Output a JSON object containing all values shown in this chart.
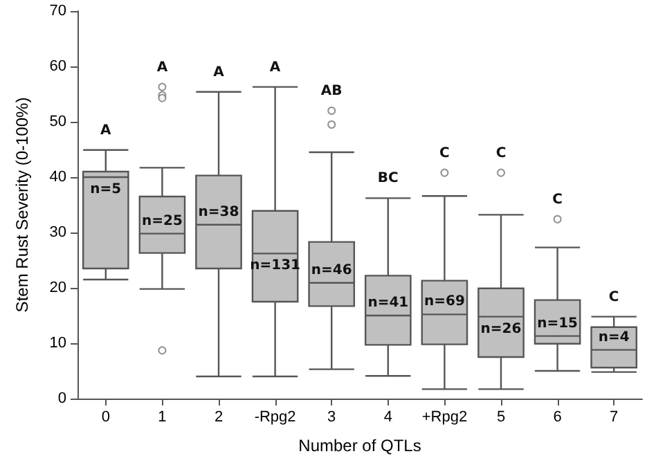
{
  "chart_data": {
    "type": "box",
    "xlabel": "Number of QTLs",
    "ylabel": "Stem Rust Severity (0-100%)",
    "categories": [
      "0",
      "1",
      "2",
      "-Rpg2",
      "3",
      "4",
      "+Rpg2",
      "5",
      "6",
      "7"
    ],
    "color": "#c0c0c0",
    "boxes": [
      {
        "low": 21.5,
        "q1": 23.5,
        "median": 40,
        "q3": 41,
        "high": 44.9
      },
      {
        "low": 19.8,
        "q1": 26.3,
        "median": 29.8,
        "q3": 36.5,
        "high": 41.7,
        "outliers": [
          56.3,
          54.8,
          54.3,
          8.7
        ]
      },
      {
        "low": 4,
        "q1": 23.5,
        "median": 31.4,
        "q3": 40.3,
        "high": 55.4
      },
      {
        "low": 4,
        "q1": 17.5,
        "median": 26.2,
        "q3": 33.9,
        "high": 56.3
      },
      {
        "low": 5.3,
        "q1": 16.7,
        "median": 20.9,
        "q3": 28.3,
        "high": 44.5,
        "outliers": [
          52,
          49.5
        ]
      },
      {
        "low": 4.1,
        "q1": 9.7,
        "median": 15,
        "q3": 22.2,
        "high": 36.2
      },
      {
        "low": 1.7,
        "q1": 9.8,
        "median": 15.2,
        "q3": 21.3,
        "high": 36.6,
        "outliers": [
          40.8
        ]
      },
      {
        "low": 1.7,
        "q1": 7.5,
        "median": 14.8,
        "q3": 19.9,
        "high": 33.2,
        "outliers": [
          40.8
        ]
      },
      {
        "low": 5,
        "q1": 9.9,
        "median": 11.3,
        "q3": 17.8,
        "high": 27.3,
        "outliers": [
          32.4
        ]
      },
      {
        "low": 4.8,
        "q1": 5.6,
        "median": 8.8,
        "q3": 12.9,
        "high": 14.8
      }
    ],
    "ylim": [
      0,
      70
    ],
    "yticks": [
      0,
      10,
      20,
      30,
      40,
      50,
      60,
      70
    ],
    "grid": false,
    "marker": "circle",
    "annotations": [
      "A",
      "A",
      "A",
      "A",
      "AB",
      "BC",
      "C",
      "C",
      "C",
      "C",
      "n=5",
      "n=25",
      "n=38",
      "n=131",
      "n=46",
      "n=41",
      "n=69",
      "n=26",
      "n=15",
      "n=4"
    ]
  }
}
